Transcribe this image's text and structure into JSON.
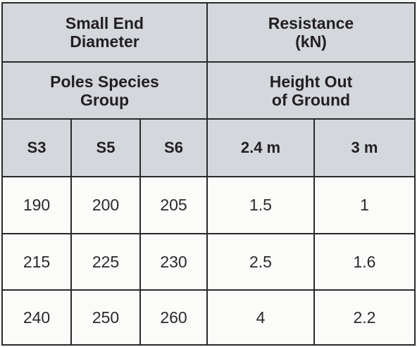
{
  "header": {
    "diameter_title": [
      "Small End",
      "Diameter"
    ],
    "resistance_title": [
      "Resistance",
      "(kN)"
    ],
    "species_title": [
      "Poles Species",
      "Group"
    ],
    "height_title": [
      "Height Out",
      "of Ground"
    ]
  },
  "columns": [
    "S3",
    "S5",
    "S6",
    "2.4 m",
    "3 m"
  ],
  "rows": [
    [
      "190",
      "200",
      "205",
      "1.5",
      "1"
    ],
    [
      "215",
      "225",
      "230",
      "2.5",
      "1.6"
    ],
    [
      "240",
      "250",
      "260",
      "4",
      "2.2"
    ]
  ],
  "colors": {
    "header_bg": "#d4d7dc",
    "cell_bg": "#fbfbfa",
    "border": "#2a2a2a"
  }
}
